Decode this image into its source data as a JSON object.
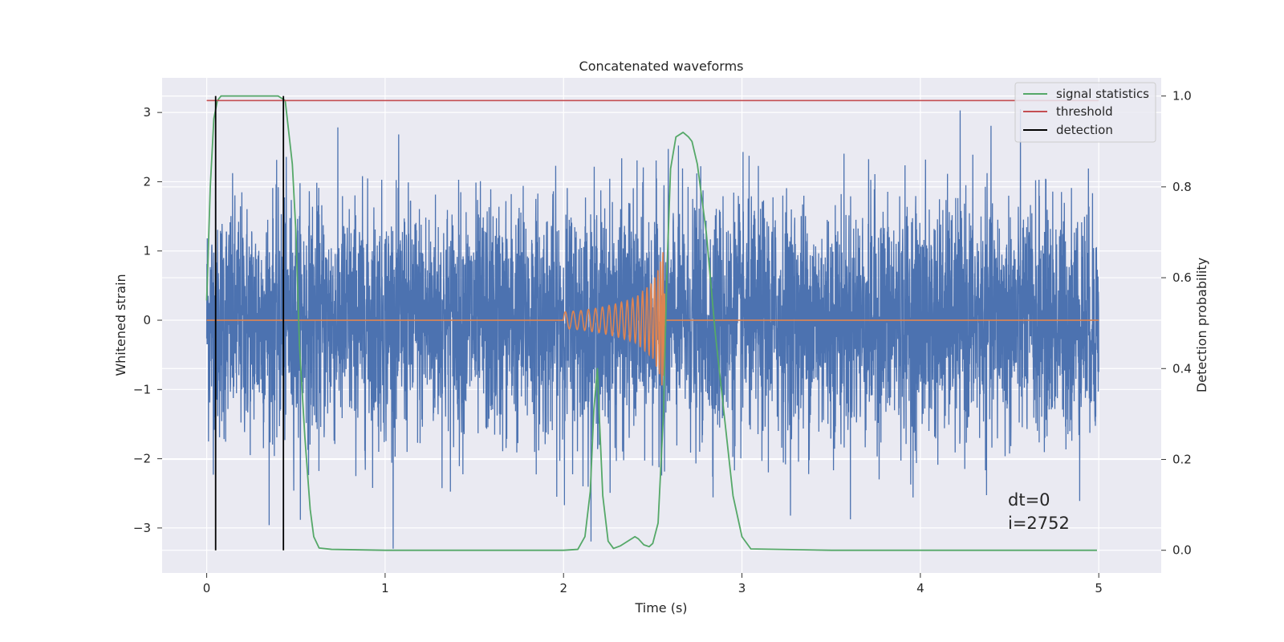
{
  "chart_data": {
    "type": "line",
    "title": "Concatenated waveforms",
    "xlabel": "Time (s)",
    "ylabel": "Whitened strain",
    "ylabel_right": "Detection probability",
    "xlim": [
      -0.25,
      5.35
    ],
    "ylim": [
      -3.65,
      3.5
    ],
    "ylim_right": [
      -0.05,
      1.04
    ],
    "grid": true,
    "legend_position": "top-right",
    "x_ticks": [
      0,
      1,
      2,
      3,
      4,
      5
    ],
    "y_ticks": [
      -3,
      -2,
      -1,
      0,
      1,
      2,
      3
    ],
    "y_ticks_right": [
      0.0,
      0.2,
      0.4,
      0.6,
      0.8,
      1.0
    ],
    "x_tick_labels": [
      "0",
      "1",
      "2",
      "3",
      "4",
      "5"
    ],
    "y_tick_labels": [
      "−3",
      "−2",
      "−1",
      "0",
      "1",
      "2",
      "3"
    ],
    "y_tick_labels_right": [
      "0.0",
      "0.2",
      "0.4",
      "0.6",
      "0.8",
      "1.0"
    ],
    "series": [
      {
        "axis": "left",
        "color": "#4c72b0",
        "description": "whitened strain noise, approx. unit-variance gaussian, t from 0 to 5 s",
        "x_range": [
          0,
          5
        ],
        "std": 0.85,
        "y_range_observed": [
          -3.3,
          3.35
        ]
      },
      {
        "axis": "left",
        "color": "#dd8452",
        "description": "injected chirp waveform, zero outside 2.0–2.56 s",
        "x": [
          0,
          2.0,
          2.1,
          2.2,
          2.3,
          2.4,
          2.5,
          2.54,
          2.56,
          2.57,
          5
        ],
        "amplitude": [
          0,
          0.12,
          0.14,
          0.18,
          0.24,
          0.32,
          0.55,
          0.8,
          1.05,
          0,
          0
        ]
      },
      {
        "name": "signal statistics",
        "axis": "right",
        "color": "#55a868",
        "x": [
          0,
          0.02,
          0.04,
          0.06,
          0.08,
          0.1,
          0.2,
          0.3,
          0.4,
          0.44,
          0.48,
          0.5,
          0.52,
          0.55,
          0.58,
          0.6,
          0.63,
          0.7,
          1.0,
          1.5,
          2.0,
          2.08,
          2.12,
          2.15,
          2.17,
          2.19,
          2.2,
          2.22,
          2.25,
          2.28,
          2.32,
          2.36,
          2.4,
          2.42,
          2.45,
          2.48,
          2.5,
          2.53,
          2.56,
          2.58,
          2.6,
          2.63,
          2.67,
          2.7,
          2.72,
          2.75,
          2.8,
          2.85,
          2.9,
          2.95,
          3.0,
          3.05,
          3.5,
          4.0,
          4.5,
          4.99
        ],
        "y": [
          0.55,
          0.8,
          0.95,
          0.99,
          1.0,
          1.0,
          1.0,
          1.0,
          1.0,
          0.99,
          0.85,
          0.7,
          0.45,
          0.25,
          0.09,
          0.03,
          0.005,
          0.002,
          0.0,
          0.0,
          0.0,
          0.002,
          0.03,
          0.13,
          0.31,
          0.4,
          0.3,
          0.12,
          0.02,
          0.004,
          0.01,
          0.02,
          0.03,
          0.025,
          0.012,
          0.008,
          0.015,
          0.06,
          0.3,
          0.62,
          0.84,
          0.91,
          0.92,
          0.91,
          0.9,
          0.85,
          0.7,
          0.48,
          0.3,
          0.12,
          0.03,
          0.003,
          0.0,
          0.0,
          0.0,
          0.0
        ]
      },
      {
        "name": "threshold",
        "axis": "right",
        "color": "#c44e52",
        "x": [
          0,
          5
        ],
        "y": [
          0.99,
          0.99
        ]
      },
      {
        "name": "detection",
        "axis": "right",
        "color": "#000000",
        "x": [
          0.05,
          0.43
        ],
        "y_range": [
          0.0,
          1.0
        ]
      }
    ],
    "annotations": [
      "dt=0",
      "i=2752"
    ]
  },
  "colors": {
    "axes_background": "#eaeaf2",
    "grid": "#ffffff"
  }
}
